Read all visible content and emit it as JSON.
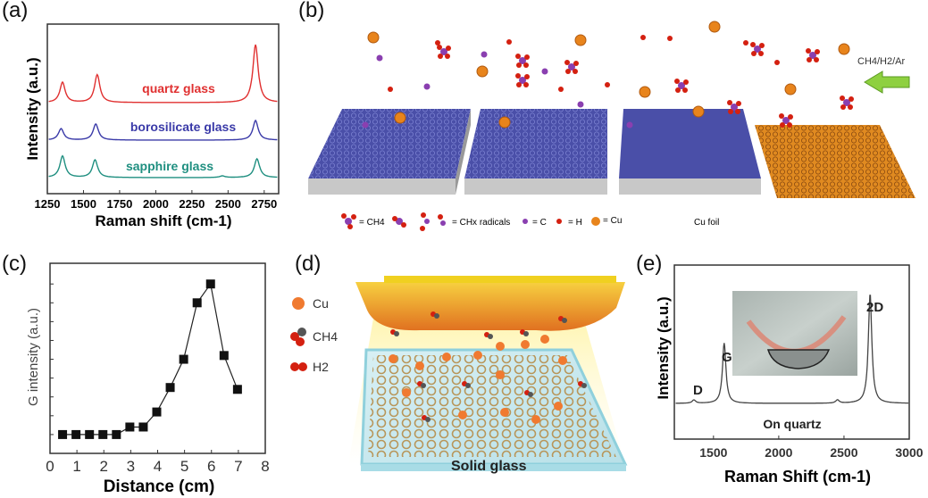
{
  "panels": {
    "a": {
      "label": "(a)"
    },
    "b": {
      "label": "(b)",
      "gas_label": "CH4/H2/Ar",
      "foil_label": "Cu foil",
      "legend": {
        "ch4": "= CH4",
        "radicals": "= CHx radicals",
        "c": "= C",
        "h": "= H",
        "cu": "= Cu"
      }
    },
    "c": {
      "label": "(c)"
    },
    "d": {
      "label": "(d)",
      "legend": {
        "cu": "Cu",
        "ch4": "CH4",
        "h2": "H2"
      },
      "substrate_label": "Solid glass"
    },
    "e": {
      "label": "(e)"
    }
  },
  "colors": {
    "quartz": "#e03030",
    "borosilicate": "#3a3aa8",
    "sapphire": "#1f8f80",
    "cu": "#e8841c",
    "carbon": "#8a3fb0",
    "hydrogen": "#d42010",
    "graphene_blue": "#4a4fa8"
  },
  "chart_data": [
    {
      "type": "line",
      "panel": "a",
      "xlabel": "Raman shift (cm-1)",
      "ylabel": "Intensity (a.u.)",
      "xlim": [
        1250,
        2850
      ],
      "xticks": [
        "1250",
        "1500",
        "1750",
        "2000",
        "2250",
        "2500",
        "2750"
      ],
      "series": [
        {
          "name": "quartz glass",
          "peaks": [
            [
              1355,
              0.35
            ],
            [
              1595,
              0.48
            ],
            [
              2690,
              1.0
            ]
          ]
        },
        {
          "name": "borosilicate glass",
          "peaks": [
            [
              1345,
              0.32
            ],
            [
              1585,
              0.45
            ],
            [
              2690,
              0.55
            ]
          ]
        },
        {
          "name": "sapphire glass",
          "peaks": [
            [
              1355,
              0.55
            ],
            [
              1580,
              0.45
            ],
            [
              2460,
              0.04
            ],
            [
              2700,
              0.48
            ]
          ]
        }
      ]
    },
    {
      "type": "line",
      "panel": "c",
      "xlabel": "Distance (cm)",
      "ylabel": "G intensity (a.u.)",
      "xlim": [
        0,
        8
      ],
      "ylim": [
        -1,
        9.1
      ],
      "xticks": [
        "0",
        "1",
        "2",
        "3",
        "4",
        "5",
        "6",
        "7",
        "8"
      ],
      "x": [
        0.5,
        1,
        1.5,
        2,
        2.5,
        3,
        3.5,
        4,
        4.5,
        5,
        5.5,
        6,
        6.5,
        7
      ],
      "y": [
        0,
        0,
        0,
        0,
        0,
        0.4,
        0.4,
        1.2,
        2.5,
        4.0,
        7.0,
        8.0,
        4.2,
        2.4
      ]
    },
    {
      "type": "line",
      "panel": "e",
      "xlabel": "Raman Shift (cm-1)",
      "ylabel": "Intensity (a.u.)",
      "xlim": [
        1200,
        3000
      ],
      "xticks": [
        "1500",
        "2000",
        "2500",
        "3000"
      ],
      "annotations": [
        "D",
        "G",
        "2D",
        "On quartz"
      ],
      "peaks": [
        [
          1350,
          0.03
        ],
        [
          1582,
          0.55
        ],
        [
          2450,
          0.03
        ],
        [
          2700,
          1.0
        ]
      ]
    }
  ]
}
